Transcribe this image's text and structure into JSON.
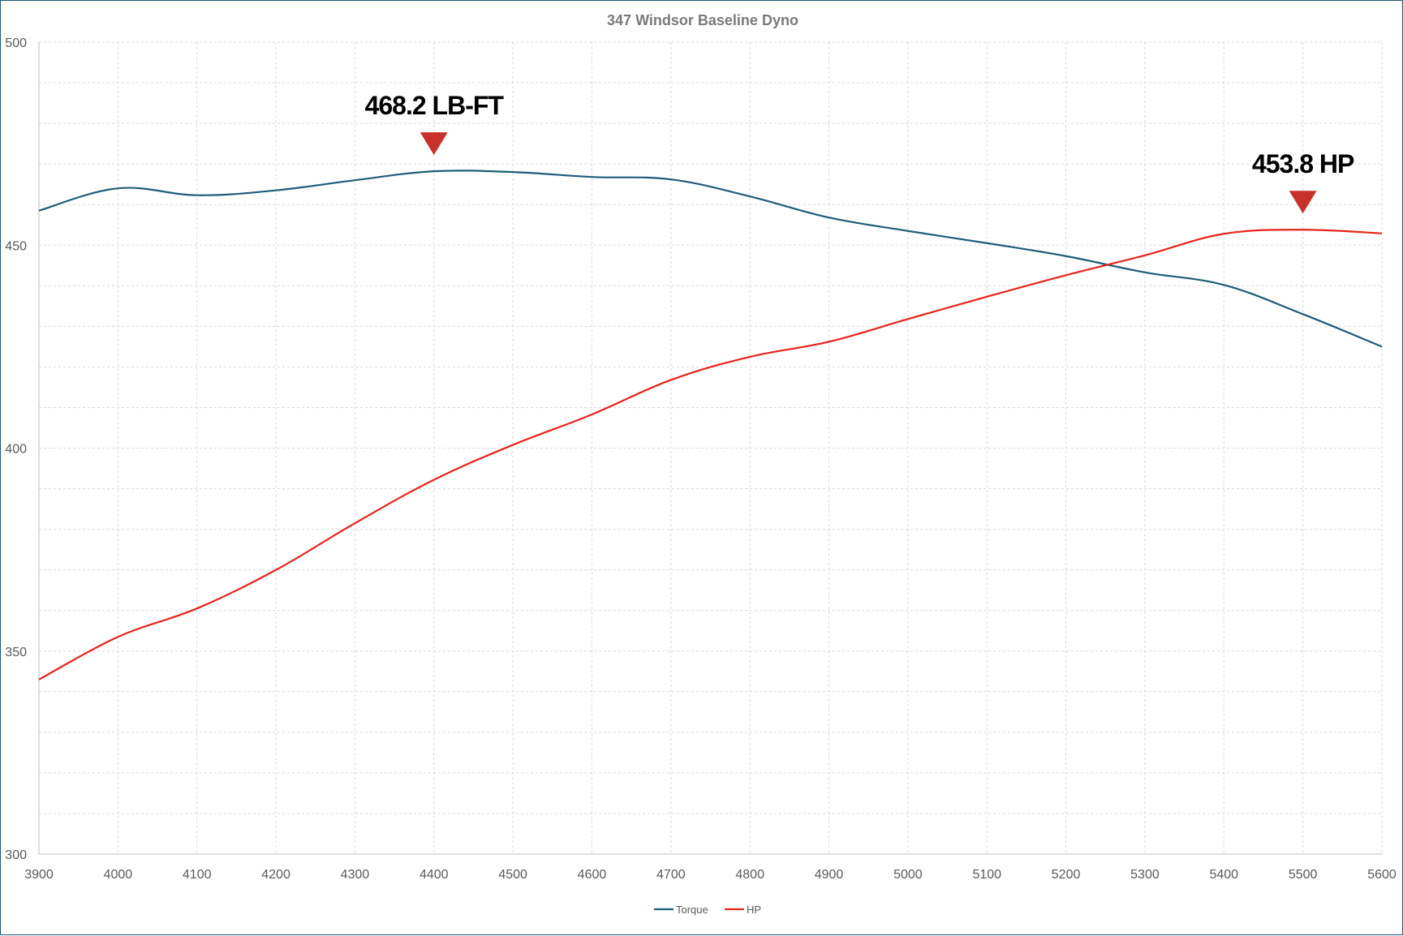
{
  "chart_data": {
    "type": "line",
    "title": "347 Windsor Baseline Dyno",
    "xlabel": "",
    "ylabel": "",
    "xlim": [
      3900,
      5600
    ],
    "ylim": [
      300,
      500
    ],
    "x_ticks": [
      "3900",
      "4000",
      "4100",
      "4200",
      "4300",
      "4400",
      "4500",
      "4600",
      "4700",
      "4800",
      "4900",
      "5000",
      "5100",
      "5200",
      "5300",
      "5400",
      "5500",
      "5600"
    ],
    "y_ticks": [
      "300",
      "350",
      "400",
      "450",
      "500"
    ],
    "grid": true,
    "legend_position": "bottom",
    "x": [
      3900,
      4000,
      4100,
      4200,
      4300,
      4400,
      4500,
      4600,
      4700,
      4800,
      4900,
      5000,
      5100,
      5200,
      5300,
      5400,
      5500,
      5600
    ],
    "series": [
      {
        "name": "Torque",
        "color": "#1f5b7a",
        "values": [
          458.5,
          464.0,
          462.3,
          463.5,
          466.0,
          468.2,
          468.0,
          466.8,
          466.2,
          462.0,
          456.8,
          453.5,
          450.5,
          447.3,
          443.3,
          440.2,
          433.0,
          425.0
        ]
      },
      {
        "name": "HP",
        "color": "#e8231b",
        "values": [
          343.0,
          353.5,
          360.5,
          370.0,
          381.5,
          392.2,
          400.8,
          408.3,
          416.8,
          422.5,
          426.2,
          431.8,
          437.3,
          442.6,
          447.5,
          452.8,
          453.8,
          452.9
        ]
      }
    ],
    "annotations": [
      {
        "text": "468.2 LB-FT",
        "x": 4400,
        "y": 468.2,
        "marker_color": "#c8312a"
      },
      {
        "text": "453.8 HP",
        "x": 5500,
        "y": 453.8,
        "marker_color": "#c8312a"
      }
    ]
  }
}
